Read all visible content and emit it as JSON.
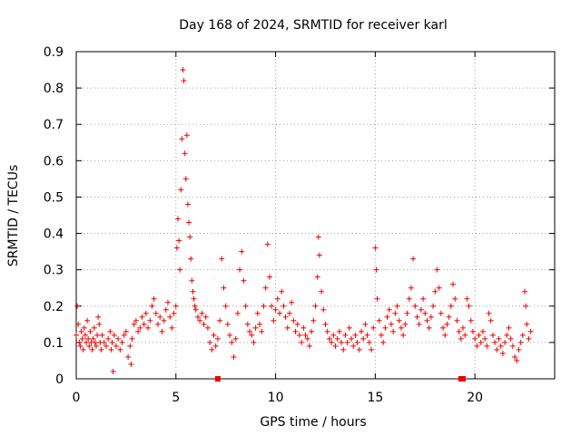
{
  "chart_data": {
    "type": "scatter",
    "title": "Day 168 of 2024, SRMTID for receiver karl",
    "xlabel": "GPS time / hours",
    "ylabel": "SRMTID / TECUs",
    "xlim": [
      0,
      24
    ],
    "ylim": [
      0,
      0.9
    ],
    "xticks": [
      0,
      5,
      10,
      15,
      20
    ],
    "yticks": [
      0,
      0.1,
      0.2,
      0.3,
      0.4,
      0.5,
      0.6,
      0.7,
      0.8,
      0.9
    ],
    "xtick_labels": [
      "0",
      "5",
      "10",
      "15",
      "20"
    ],
    "ytick_labels": [
      "0",
      "0.1",
      "0.2",
      "0.3",
      "0.4",
      "0.5",
      "0.6",
      "0.7",
      "0.8",
      "0.9"
    ],
    "grid": true,
    "marker": "+",
    "color": "#ee0000",
    "series": [
      {
        "name": "SRMTID",
        "points": [
          [
            0.0,
            0.12
          ],
          [
            0.05,
            0.2
          ],
          [
            0.1,
            0.15
          ],
          [
            0.15,
            0.1
          ],
          [
            0.2,
            0.09
          ],
          [
            0.25,
            0.13
          ],
          [
            0.3,
            0.11
          ],
          [
            0.35,
            0.08
          ],
          [
            0.4,
            0.14
          ],
          [
            0.45,
            0.12
          ],
          [
            0.5,
            0.1
          ],
          [
            0.55,
            0.16
          ],
          [
            0.6,
            0.11
          ],
          [
            0.65,
            0.09
          ],
          [
            0.7,
            0.13
          ],
          [
            0.75,
            0.1
          ],
          [
            0.8,
            0.08
          ],
          [
            0.85,
            0.11
          ],
          [
            0.9,
            0.14
          ],
          [
            0.95,
            0.1
          ],
          [
            1.0,
            0.09
          ],
          [
            1.05,
            0.12
          ],
          [
            1.1,
            0.17
          ],
          [
            1.15,
            0.15
          ],
          [
            1.2,
            0.1
          ],
          [
            1.25,
            0.08
          ],
          [
            1.3,
            0.12
          ],
          [
            1.4,
            0.1
          ],
          [
            1.5,
            0.09
          ],
          [
            1.6,
            0.11
          ],
          [
            1.7,
            0.13
          ],
          [
            1.75,
            0.08
          ],
          [
            1.8,
            0.1
          ],
          [
            1.85,
            0.02
          ],
          [
            1.9,
            0.12
          ],
          [
            2.0,
            0.09
          ],
          [
            2.1,
            0.11
          ],
          [
            2.2,
            0.08
          ],
          [
            2.3,
            0.1
          ],
          [
            2.4,
            0.12
          ],
          [
            2.5,
            0.13
          ],
          [
            2.6,
            0.06
          ],
          [
            2.7,
            0.09
          ],
          [
            2.75,
            0.04
          ],
          [
            2.8,
            0.11
          ],
          [
            2.9,
            0.15
          ],
          [
            3.0,
            0.16
          ],
          [
            3.1,
            0.13
          ],
          [
            3.2,
            0.14
          ],
          [
            3.3,
            0.17
          ],
          [
            3.4,
            0.15
          ],
          [
            3.5,
            0.18
          ],
          [
            3.6,
            0.14
          ],
          [
            3.7,
            0.16
          ],
          [
            3.8,
            0.2
          ],
          [
            3.9,
            0.22
          ],
          [
            4.0,
            0.18
          ],
          [
            4.1,
            0.15
          ],
          [
            4.2,
            0.17
          ],
          [
            4.3,
            0.13
          ],
          [
            4.4,
            0.16
          ],
          [
            4.5,
            0.19
          ],
          [
            4.6,
            0.21
          ],
          [
            4.7,
            0.17
          ],
          [
            4.8,
            0.14
          ],
          [
            4.9,
            0.18
          ],
          [
            5.0,
            0.2
          ],
          [
            5.05,
            0.36
          ],
          [
            5.1,
            0.44
          ],
          [
            5.15,
            0.38
          ],
          [
            5.2,
            0.3
          ],
          [
            5.25,
            0.52
          ],
          [
            5.3,
            0.66
          ],
          [
            5.35,
            0.85
          ],
          [
            5.4,
            0.82
          ],
          [
            5.45,
            0.62
          ],
          [
            5.5,
            0.55
          ],
          [
            5.55,
            0.67
          ],
          [
            5.6,
            0.48
          ],
          [
            5.65,
            0.43
          ],
          [
            5.7,
            0.39
          ],
          [
            5.75,
            0.33
          ],
          [
            5.8,
            0.27
          ],
          [
            5.85,
            0.24
          ],
          [
            5.9,
            0.22
          ],
          [
            5.95,
            0.2
          ],
          [
            6.0,
            0.19
          ],
          [
            6.1,
            0.17
          ],
          [
            6.2,
            0.16
          ],
          [
            6.3,
            0.18
          ],
          [
            6.4,
            0.15
          ],
          [
            6.5,
            0.17
          ],
          [
            6.6,
            0.14
          ],
          [
            6.7,
            0.1
          ],
          [
            6.8,
            0.08
          ],
          [
            6.9,
            0.12
          ],
          [
            7.0,
            0.09
          ],
          [
            7.1,
            0.11
          ],
          [
            7.2,
            0.16
          ],
          [
            7.3,
            0.33
          ],
          [
            7.4,
            0.25
          ],
          [
            7.5,
            0.2
          ],
          [
            7.6,
            0.15
          ],
          [
            7.7,
            0.12
          ],
          [
            7.8,
            0.1
          ],
          [
            7.9,
            0.06
          ],
          [
            8.0,
            0.11
          ],
          [
            8.1,
            0.18
          ],
          [
            8.2,
            0.3
          ],
          [
            8.3,
            0.35
          ],
          [
            8.4,
            0.27
          ],
          [
            8.5,
            0.2
          ],
          [
            8.6,
            0.15
          ],
          [
            8.7,
            0.13
          ],
          [
            8.8,
            0.12
          ],
          [
            8.9,
            0.1
          ],
          [
            9.0,
            0.14
          ],
          [
            9.1,
            0.18
          ],
          [
            9.2,
            0.15
          ],
          [
            9.3,
            0.13
          ],
          [
            9.4,
            0.2
          ],
          [
            9.5,
            0.25
          ],
          [
            9.6,
            0.37
          ],
          [
            9.7,
            0.28
          ],
          [
            9.8,
            0.2
          ],
          [
            9.9,
            0.16
          ],
          [
            10.0,
            0.19
          ],
          [
            10.1,
            0.22
          ],
          [
            10.2,
            0.18
          ],
          [
            10.3,
            0.24
          ],
          [
            10.4,
            0.2
          ],
          [
            10.5,
            0.17
          ],
          [
            10.6,
            0.14
          ],
          [
            10.7,
            0.18
          ],
          [
            10.8,
            0.21
          ],
          [
            10.9,
            0.16
          ],
          [
            11.0,
            0.13
          ],
          [
            11.1,
            0.15
          ],
          [
            11.2,
            0.12
          ],
          [
            11.3,
            0.1
          ],
          [
            11.4,
            0.14
          ],
          [
            11.5,
            0.12
          ],
          [
            11.6,
            0.11
          ],
          [
            11.7,
            0.09
          ],
          [
            11.8,
            0.13
          ],
          [
            11.9,
            0.16
          ],
          [
            12.0,
            0.2
          ],
          [
            12.1,
            0.28
          ],
          [
            12.15,
            0.39
          ],
          [
            12.2,
            0.34
          ],
          [
            12.3,
            0.24
          ],
          [
            12.4,
            0.19
          ],
          [
            12.5,
            0.15
          ],
          [
            12.6,
            0.13
          ],
          [
            12.7,
            0.11
          ],
          [
            12.8,
            0.1
          ],
          [
            12.9,
            0.12
          ],
          [
            13.0,
            0.09
          ],
          [
            13.1,
            0.11
          ],
          [
            13.2,
            0.13
          ],
          [
            13.3,
            0.1
          ],
          [
            13.4,
            0.08
          ],
          [
            13.5,
            0.12
          ],
          [
            13.6,
            0.1
          ],
          [
            13.7,
            0.14
          ],
          [
            13.8,
            0.11
          ],
          [
            13.9,
            0.09
          ],
          [
            14.0,
            0.12
          ],
          [
            14.1,
            0.1
          ],
          [
            14.2,
            0.08
          ],
          [
            14.3,
            0.13
          ],
          [
            14.4,
            0.11
          ],
          [
            14.5,
            0.15
          ],
          [
            14.6,
            0.12
          ],
          [
            14.7,
            0.1
          ],
          [
            14.8,
            0.08
          ],
          [
            14.9,
            0.14
          ],
          [
            15.0,
            0.36
          ],
          [
            15.05,
            0.3
          ],
          [
            15.1,
            0.22
          ],
          [
            15.2,
            0.16
          ],
          [
            15.3,
            0.12
          ],
          [
            15.4,
            0.1
          ],
          [
            15.5,
            0.14
          ],
          [
            15.6,
            0.17
          ],
          [
            15.7,
            0.19
          ],
          [
            15.8,
            0.15
          ],
          [
            15.9,
            0.13
          ],
          [
            16.0,
            0.18
          ],
          [
            16.1,
            0.2
          ],
          [
            16.2,
            0.16
          ],
          [
            16.3,
            0.14
          ],
          [
            16.4,
            0.12
          ],
          [
            16.5,
            0.15
          ],
          [
            16.6,
            0.18
          ],
          [
            16.7,
            0.22
          ],
          [
            16.8,
            0.25
          ],
          [
            16.9,
            0.33
          ],
          [
            17.0,
            0.2
          ],
          [
            17.1,
            0.17
          ],
          [
            17.2,
            0.15
          ],
          [
            17.3,
            0.19
          ],
          [
            17.4,
            0.22
          ],
          [
            17.5,
            0.18
          ],
          [
            17.6,
            0.16
          ],
          [
            17.7,
            0.14
          ],
          [
            17.8,
            0.17
          ],
          [
            17.9,
            0.2
          ],
          [
            18.0,
            0.24
          ],
          [
            18.1,
            0.3
          ],
          [
            18.2,
            0.25
          ],
          [
            18.3,
            0.18
          ],
          [
            18.4,
            0.14
          ],
          [
            18.5,
            0.12
          ],
          [
            18.6,
            0.15
          ],
          [
            18.7,
            0.17
          ],
          [
            18.8,
            0.2
          ],
          [
            18.9,
            0.26
          ],
          [
            19.0,
            0.22
          ],
          [
            19.1,
            0.16
          ],
          [
            19.2,
            0.13
          ],
          [
            19.3,
            0.11
          ],
          [
            19.4,
            0.14
          ],
          [
            19.5,
            0.12
          ],
          [
            19.6,
            0.22
          ],
          [
            19.7,
            0.2
          ],
          [
            19.8,
            0.16
          ],
          [
            19.9,
            0.13
          ],
          [
            20.0,
            0.11
          ],
          [
            20.1,
            0.09
          ],
          [
            20.2,
            0.12
          ],
          [
            20.3,
            0.1
          ],
          [
            20.4,
            0.13
          ],
          [
            20.5,
            0.11
          ],
          [
            20.6,
            0.09
          ],
          [
            20.7,
            0.18
          ],
          [
            20.8,
            0.16
          ],
          [
            20.9,
            0.12
          ],
          [
            21.0,
            0.1
          ],
          [
            21.1,
            0.08
          ],
          [
            21.2,
            0.11
          ],
          [
            21.3,
            0.09
          ],
          [
            21.4,
            0.07
          ],
          [
            21.5,
            0.1
          ],
          [
            21.6,
            0.12
          ],
          [
            21.7,
            0.14
          ],
          [
            21.8,
            0.11
          ],
          [
            21.9,
            0.09
          ],
          [
            22.0,
            0.06
          ],
          [
            22.1,
            0.05
          ],
          [
            22.2,
            0.08
          ],
          [
            22.3,
            0.1
          ],
          [
            22.4,
            0.12
          ],
          [
            22.5,
            0.24
          ],
          [
            22.55,
            0.2
          ],
          [
            22.6,
            0.15
          ],
          [
            22.7,
            0.11
          ],
          [
            22.8,
            0.13
          ]
        ]
      }
    ],
    "gap_markers_x": [
      7.1,
      19.3,
      19.4
    ]
  }
}
